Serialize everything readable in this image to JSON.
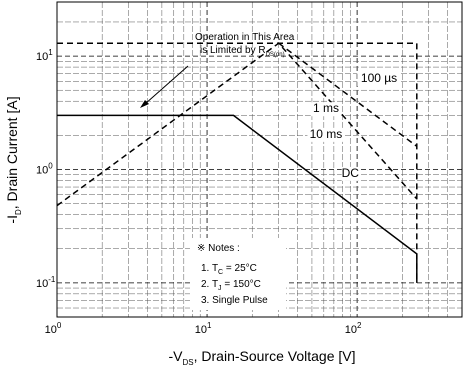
{
  "chart_data": {
    "type": "line",
    "title": "",
    "xlabel": "-V_DS, Drain-Source Voltage [V]",
    "ylabel": "-I_D, Drain Current [A]",
    "xlabel_parts": {
      "pre": "-V",
      "sub": "DS",
      "post": ", Drain-Source Voltage [V]"
    },
    "ylabel_parts": {
      "pre": "-I",
      "sub": "D",
      "post": ", Drain Current [A]"
    },
    "x_scale": "log",
    "y_scale": "log",
    "xlim": [
      1,
      500
    ],
    "ylim": [
      0.05,
      30
    ],
    "grid": true,
    "x_ticks": [
      {
        "value": 1,
        "base": "10",
        "exp": "0"
      },
      {
        "value": 10,
        "base": "10",
        "exp": "1"
      },
      {
        "value": 100,
        "base": "10",
        "exp": "2"
      }
    ],
    "y_ticks": [
      {
        "value": 0.1,
        "base": "10",
        "exp": "-1"
      },
      {
        "value": 1,
        "base": "10",
        "exp": "0"
      },
      {
        "value": 10,
        "base": "10",
        "exp": "1"
      }
    ],
    "series": [
      {
        "name": "DC",
        "style": "solid",
        "points": [
          [
            1,
            3.0
          ],
          [
            15,
            3.0
          ],
          [
            250,
            0.18
          ],
          [
            250,
            0.1
          ]
        ]
      },
      {
        "name": "10 ms",
        "style": "dashed",
        "points": [
          [
            1,
            0.48
          ],
          [
            30,
            13
          ],
          [
            250,
            0.55
          ]
        ]
      },
      {
        "name": "1 ms",
        "style": "dashed",
        "points": [
          [
            30,
            13
          ],
          [
            250,
            1.6
          ]
        ]
      },
      {
        "name": "100 µs",
        "style": "dashed",
        "points": [
          [
            1,
            13
          ],
          [
            250,
            13
          ],
          [
            250,
            0.1
          ]
        ]
      }
    ],
    "series_labels": [
      {
        "series": "DC",
        "text": "DC",
        "x": 90,
        "y": 0.86
      },
      {
        "series": "10 ms",
        "text": "10 ms",
        "x": 62,
        "y": 1.9
      },
      {
        "series": "1 ms",
        "text": "1 ms",
        "x": 62,
        "y": 3.2
      },
      {
        "series": "100 µs",
        "text": "100 µs",
        "x": 140,
        "y": 5.9
      }
    ],
    "annotations": {
      "operation_line1": "Operation in This Area",
      "operation_line2_pre": "is Limited by R",
      "operation_line2_sub": "DS(on)",
      "notes_title": "※ Notes :",
      "note1": {
        "pre": "1. T",
        "sub": "C",
        "post": " = 25°C"
      },
      "note2": {
        "pre": "2. T",
        "sub": "J",
        "post": " = 150°C"
      },
      "note3": "3. Single Pulse"
    }
  }
}
